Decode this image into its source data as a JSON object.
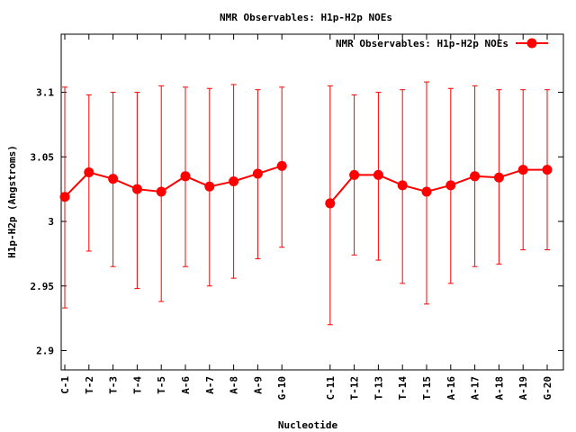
{
  "chart_data": {
    "type": "line",
    "title": "NMR Observables: H1p-H2p NOEs",
    "xlabel": "Nucleotide",
    "ylabel": "H1p-H2p (Angstroms)",
    "ylim": [
      2.885,
      3.145
    ],
    "yticks": [
      "2.9",
      "2.95",
      "3",
      "3.05",
      "3.1"
    ],
    "ytick_values": [
      2.9,
      2.95,
      3.0,
      3.05,
      3.1
    ],
    "legend_position": "top-right",
    "grid": false,
    "colors": {
      "series": "#ff0000",
      "axis": "#000000"
    },
    "categories": [
      "C-1",
      "T-2",
      "T-3",
      "T-4",
      "T-5",
      "A-6",
      "A-7",
      "A-8",
      "A-9",
      "G-10",
      "C-11",
      "T-12",
      "T-13",
      "T-14",
      "T-15",
      "A-16",
      "A-17",
      "A-18",
      "A-19",
      "G-20"
    ],
    "series": [
      {
        "name": "NMR Observables: H1p-H2p NOEs",
        "segments": [
          {
            "points": [
              {
                "x": "C-1",
                "y": 3.019,
                "low": 2.933,
                "high": 3.104
              },
              {
                "x": "T-2",
                "y": 3.038,
                "low": 2.977,
                "high": 3.098
              },
              {
                "x": "T-3",
                "y": 3.033,
                "low": 2.965,
                "high": 3.1
              },
              {
                "x": "T-4",
                "y": 3.025,
                "low": 2.948,
                "high": 3.1
              },
              {
                "x": "T-5",
                "y": 3.023,
                "low": 2.938,
                "high": 3.105
              },
              {
                "x": "A-6",
                "y": 3.035,
                "low": 2.965,
                "high": 3.104
              },
              {
                "x": "A-7",
                "y": 3.027,
                "low": 2.95,
                "high": 3.103
              },
              {
                "x": "A-8",
                "y": 3.031,
                "low": 2.956,
                "high": 3.106
              },
              {
                "x": "A-9",
                "y": 3.037,
                "low": 2.971,
                "high": 3.102
              },
              {
                "x": "G-10",
                "y": 3.043,
                "low": 2.98,
                "high": 3.104
              }
            ]
          },
          {
            "points": [
              {
                "x": "C-11",
                "y": 3.014,
                "low": 2.92,
                "high": 3.105
              },
              {
                "x": "T-12",
                "y": 3.036,
                "low": 2.974,
                "high": 3.098
              },
              {
                "x": "T-13",
                "y": 3.036,
                "low": 2.97,
                "high": 3.1
              },
              {
                "x": "T-14",
                "y": 3.028,
                "low": 2.952,
                "high": 3.102
              },
              {
                "x": "T-15",
                "y": 3.023,
                "low": 2.936,
                "high": 3.108
              },
              {
                "x": "A-16",
                "y": 3.028,
                "low": 2.952,
                "high": 3.103
              },
              {
                "x": "A-17",
                "y": 3.035,
                "low": 2.965,
                "high": 3.105
              },
              {
                "x": "A-18",
                "y": 3.034,
                "low": 2.967,
                "high": 3.102
              },
              {
                "x": "A-19",
                "y": 3.04,
                "low": 2.978,
                "high": 3.102
              },
              {
                "x": "G-20",
                "y": 3.04,
                "low": 2.978,
                "high": 3.102
              }
            ]
          }
        ]
      }
    ]
  }
}
